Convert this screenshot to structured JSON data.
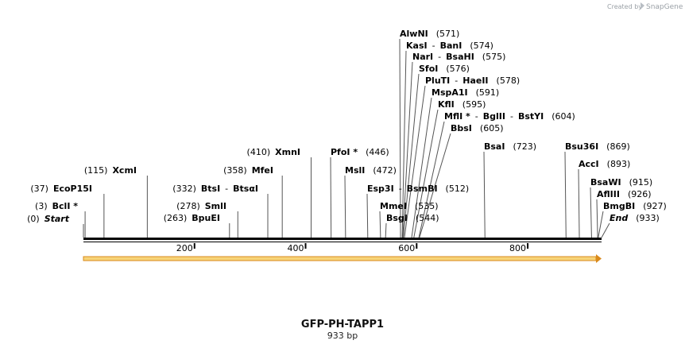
{
  "credit": {
    "prefix": "Created by",
    "brand": "SnapGene"
  },
  "title": "GFP-PH-TAPP1",
  "size_label": "933 bp",
  "total_bp": 933,
  "colors": {
    "backbone": "#000000",
    "feature_fill": "#f7d478",
    "feature_edge": "#d98a1c"
  },
  "ticks": [
    {
      "pos": 200,
      "label": "200"
    },
    {
      "pos": 400,
      "label": "400"
    },
    {
      "pos": 600,
      "label": "600"
    },
    {
      "pos": 800,
      "label": "800"
    }
  ],
  "sites": [
    {
      "id": "start",
      "pre": "(0)",
      "names": [
        "Start"
      ],
      "post": "",
      "pos": 0,
      "italic": true
    },
    {
      "id": "bcli",
      "pre": "(3)",
      "names": [
        "BclI *"
      ],
      "post": "",
      "pos": 3
    },
    {
      "id": "ecop15i",
      "pre": "(37)",
      "names": [
        "EcoP15I"
      ],
      "post": "",
      "pos": 37
    },
    {
      "id": "xcmi",
      "pre": "(115)",
      "names": [
        "XcmI"
      ],
      "post": "",
      "pos": 115
    },
    {
      "id": "bpuei",
      "pre": "(263)",
      "names": [
        "BpuEI"
      ],
      "post": "",
      "pos": 263
    },
    {
      "id": "smli",
      "pre": "(278)",
      "names": [
        "SmlI"
      ],
      "post": "",
      "pos": 278
    },
    {
      "id": "btsi",
      "pre": "(332)",
      "names": [
        "BtsI",
        "BtsαI"
      ],
      "post": "",
      "pos": 332
    },
    {
      "id": "mfei",
      "pre": "(358)",
      "names": [
        "MfeI"
      ],
      "post": "",
      "pos": 358
    },
    {
      "id": "xmni",
      "pre": "(410)",
      "names": [
        "XmnI"
      ],
      "post": "",
      "pos": 410
    },
    {
      "id": "pfoi",
      "pre": "",
      "names": [
        "PfoI *"
      ],
      "post": "(446)",
      "pos": 446
    },
    {
      "id": "msli",
      "pre": "",
      "names": [
        "MslI"
      ],
      "post": "(472)",
      "pos": 472
    },
    {
      "id": "esp3i",
      "pre": "",
      "names": [
        "Esp3I",
        "BsmBI"
      ],
      "post": "(512)",
      "pos": 512
    },
    {
      "id": "mmei",
      "pre": "",
      "names": [
        "MmeI"
      ],
      "post": "(535)",
      "pos": 535
    },
    {
      "id": "bsgi",
      "pre": "",
      "names": [
        "BsgI"
      ],
      "post": "(544)",
      "pos": 544
    },
    {
      "id": "alwni",
      "pre": "",
      "names": [
        "AlwNI"
      ],
      "post": "(571)",
      "pos": 571
    },
    {
      "id": "kasi",
      "pre": "",
      "names": [
        "KasI",
        "BanI"
      ],
      "post": "(574)",
      "pos": 574
    },
    {
      "id": "nari",
      "pre": "",
      "names": [
        "NarI",
        "BsaHI"
      ],
      "post": "(575)",
      "pos": 575
    },
    {
      "id": "sfoi",
      "pre": "",
      "names": [
        "SfoI"
      ],
      "post": "(576)",
      "pos": 576
    },
    {
      "id": "pluti",
      "pre": "",
      "names": [
        "PluTI",
        "HaeII"
      ],
      "post": "(578)",
      "pos": 578
    },
    {
      "id": "mspa1i",
      "pre": "",
      "names": [
        "MspA1I"
      ],
      "post": "(591)",
      "pos": 591
    },
    {
      "id": "kfli",
      "pre": "",
      "names": [
        "KflI"
      ],
      "post": "(595)",
      "pos": 595
    },
    {
      "id": "mfli",
      "pre": "",
      "names": [
        "MflI *",
        "BglII",
        "BstYI"
      ],
      "post": "(604)",
      "pos": 604
    },
    {
      "id": "bbsi",
      "pre": "",
      "names": [
        "BbsI"
      ],
      "post": "(605)",
      "pos": 605
    },
    {
      "id": "bsai",
      "pre": "",
      "names": [
        "BsaI"
      ],
      "post": "(723)",
      "pos": 723
    },
    {
      "id": "bsu36i",
      "pre": "",
      "names": [
        "Bsu36I"
      ],
      "post": "(869)",
      "pos": 869
    },
    {
      "id": "acci",
      "pre": "",
      "names": [
        "AccI"
      ],
      "post": "(893)",
      "pos": 893
    },
    {
      "id": "bsawi",
      "pre": "",
      "names": [
        "BsaWI"
      ],
      "post": "(915)",
      "pos": 915
    },
    {
      "id": "afliii",
      "pre": "",
      "names": [
        "AflIII"
      ],
      "post": "(926)",
      "pos": 926
    },
    {
      "id": "bmgbi",
      "pre": "",
      "names": [
        "BmgBI"
      ],
      "post": "(927)",
      "pos": 927
    },
    {
      "id": "end",
      "pre": "",
      "names": [
        "End"
      ],
      "post": "(933)",
      "pos": 933,
      "italic": true
    }
  ]
}
